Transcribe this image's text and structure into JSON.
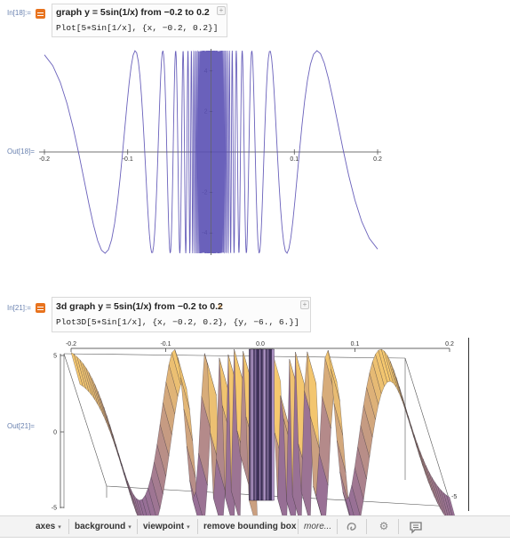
{
  "cell1": {
    "in_label": "In[18]:=",
    "title": "graph y = 5sin(1/x) from −0.2 to 0.2",
    "code": "Plot[5∗Sin[1/x], {x, −0.2, 0.2}]",
    "out_label": "Out[18]="
  },
  "cell2": {
    "in_label": "In[21]:=",
    "title": "3d graph y = 5sin(1/x) from −0.2 to 0.2",
    "arrow": "»",
    "code": "Plot3D[5∗Sin[1/x], {x, −0.2, 0.2}, {y, −6., 6.}]",
    "out_label": "Out[21]="
  },
  "toolbar": {
    "items": [
      "axes",
      "background",
      "viewpoint",
      "remove bounding box"
    ],
    "more": "more...",
    "icons": [
      "swirl-icon",
      "gear-icon",
      "comment-icon"
    ]
  },
  "colors": {
    "plot_line": "#5a50b4",
    "cell_label": "#6a82b0",
    "cell_icon": "#e8731e"
  },
  "chart_data": [
    {
      "type": "line",
      "function": "5 sin(1/x)",
      "x_range": [
        -0.2,
        0.2
      ],
      "ylim": [
        -5,
        5
      ],
      "x_ticks": [
        "-0.2",
        "-0.1",
        "0.1",
        "0.2"
      ],
      "y_ticks": [
        "-4",
        "-2",
        "2",
        "4"
      ]
    },
    {
      "type": "surface",
      "function": "5 sin(1/x)",
      "x_range": [
        -0.2,
        0.2
      ],
      "y_range": [
        -6,
        6
      ],
      "zlim": [
        -5,
        5
      ],
      "x_ticks": [
        "-0.2",
        "-0.1",
        "0.0",
        "0.1",
        "0.2"
      ],
      "z_ticks": [
        "5",
        "0",
        "-5"
      ],
      "y_ticks": [
        "-5"
      ]
    }
  ]
}
